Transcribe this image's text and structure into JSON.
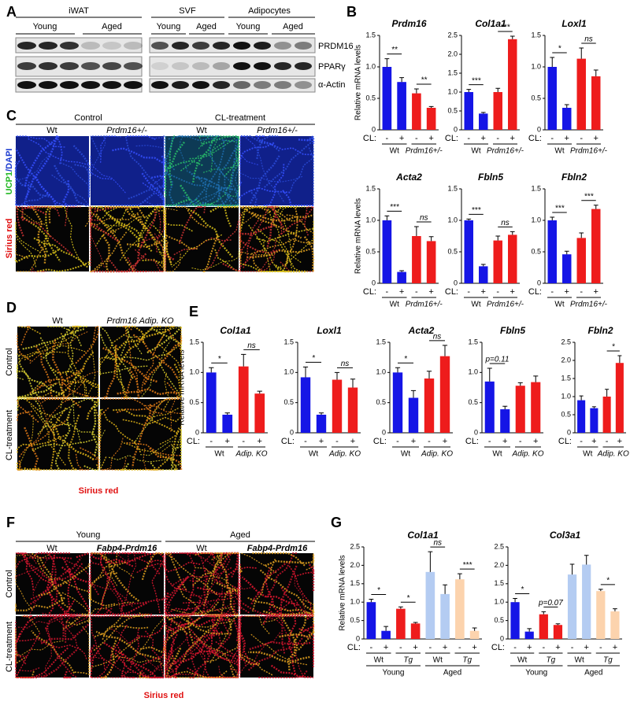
{
  "panel_labels": [
    "A",
    "B",
    "C",
    "D",
    "E",
    "F",
    "G"
  ],
  "panel_a": {
    "tissues": [
      "iWAT",
      "SVF",
      "Adipocytes"
    ],
    "groups": [
      "Young",
      "Aged",
      "Young",
      "Aged",
      "Young",
      "Aged"
    ],
    "proteins": [
      "PRDM16",
      "PPARγ",
      "α-Actin"
    ]
  },
  "panel_c": {
    "conditions": [
      "Control",
      "CL-treatment"
    ],
    "genotypes": [
      "Wt",
      "Prdm16+/-",
      "Wt",
      "Prdm16+/-"
    ],
    "stain_parts": [
      "UCP1",
      "/DAPI"
    ],
    "stain": "Sirius red"
  },
  "panel_d": {
    "genotypes": [
      "Wt",
      "Prdm16 Adip. KO"
    ],
    "conditions": [
      "Control",
      "CL-treatment"
    ],
    "stain": "Sirius red"
  },
  "panel_f": {
    "ages": [
      "Young",
      "Aged"
    ],
    "genotypes": [
      "Wt",
      "Fabp4-Prdm16",
      "Wt",
      "Fabp4-Prdm16"
    ],
    "conditions": [
      "Control",
      "CL-treatment"
    ],
    "stain": "Sirius red"
  },
  "chart_data": [
    {
      "type": "bar",
      "title": "Prdm16",
      "ylabel": "Relative mRNA levels",
      "xlabel": "CL:",
      "categories": [
        "-",
        "+",
        "-",
        "+"
      ],
      "values": [
        1.0,
        0.76,
        0.58,
        0.35
      ],
      "errors": [
        0.13,
        0.07,
        0.07,
        0.02
      ],
      "colors": [
        "#1515e6",
        "#1515e6",
        "#ee1c1c",
        "#ee1c1c"
      ],
      "groups": [
        "Wt",
        "Prdm16+/-"
      ],
      "significance": [
        "**",
        "**"
      ],
      "ylim": [
        0,
        1.5
      ],
      "yticks": [
        0,
        0.5,
        {
          "value": 1,
          "label": "1.0"
        },
        1.5
      ]
    },
    {
      "type": "bar",
      "title": "Col1a1",
      "xlabel": "CL:",
      "categories": [
        "-",
        "+",
        "-",
        "+"
      ],
      "values": [
        1.0,
        0.43,
        1.0,
        2.4
      ],
      "errors": [
        0.07,
        0.03,
        0.1,
        0.08
      ],
      "colors": [
        "#1515e6",
        "#1515e6",
        "#ee1c1c",
        "#ee1c1c"
      ],
      "groups": [
        "Wt",
        "Prdm16+/-"
      ],
      "significance": [
        "***",
        "***"
      ],
      "ylim": [
        0,
        2.5
      ],
      "yticks": [
        0,
        0.5,
        {
          "value": 1,
          "label": "1.0"
        },
        1.5,
        {
          "value": 2,
          "label": "2.0"
        },
        2.5
      ]
    },
    {
      "type": "bar",
      "title": "Loxl1",
      "xlabel": "CL:",
      "categories": [
        "-",
        "+",
        "-",
        "+"
      ],
      "values": [
        1.0,
        0.35,
        1.13,
        0.85
      ],
      "errors": [
        0.15,
        0.05,
        0.17,
        0.1
      ],
      "colors": [
        "#1515e6",
        "#1515e6",
        "#ee1c1c",
        "#ee1c1c"
      ],
      "groups": [
        "Wt",
        "Prdm16+/-"
      ],
      "significance": [
        "*",
        "ns"
      ],
      "ylim": [
        0,
        1.5
      ],
      "yticks": [
        0,
        0.5,
        {
          "value": 1,
          "label": "1.0"
        },
        1.5
      ]
    },
    {
      "type": "bar",
      "title": "Acta2",
      "ylabel": "Relative mRNA levels",
      "xlabel": "CL:",
      "categories": [
        "-",
        "+",
        "-",
        "+"
      ],
      "values": [
        1.0,
        0.18,
        0.75,
        0.67
      ],
      "errors": [
        0.07,
        0.02,
        0.15,
        0.07
      ],
      "colors": [
        "#1515e6",
        "#1515e6",
        "#ee1c1c",
        "#ee1c1c"
      ],
      "groups": [
        "Wt",
        "Prdm16+/-"
      ],
      "significance": [
        "***",
        "ns"
      ],
      "ylim": [
        0,
        1.5
      ],
      "yticks": [
        0,
        0.5,
        {
          "value": 1,
          "label": "1.0"
        },
        1.5
      ]
    },
    {
      "type": "bar",
      "title": "Fbln5",
      "xlabel": "CL:",
      "categories": [
        "-",
        "+",
        "-",
        "+"
      ],
      "values": [
        1.0,
        0.27,
        0.68,
        0.77
      ],
      "errors": [
        0.02,
        0.03,
        0.07,
        0.05
      ],
      "colors": [
        "#1515e6",
        "#1515e6",
        "#ee1c1c",
        "#ee1c1c"
      ],
      "groups": [
        "Wt",
        "Prdm16+/-"
      ],
      "significance": [
        "***",
        "ns"
      ],
      "ylim": [
        0,
        1.5
      ],
      "yticks": [
        0,
        0.5,
        {
          "value": 1,
          "label": "1.0"
        },
        1.5
      ]
    },
    {
      "type": "bar",
      "title": "Fbln2",
      "xlabel": "CL:",
      "categories": [
        "-",
        "+",
        "-",
        "+"
      ],
      "values": [
        1.0,
        0.46,
        0.72,
        1.18
      ],
      "errors": [
        0.05,
        0.05,
        0.08,
        0.06
      ],
      "colors": [
        "#1515e6",
        "#1515e6",
        "#ee1c1c",
        "#ee1c1c"
      ],
      "groups": [
        "Wt",
        "Prdm16+/-"
      ],
      "significance": [
        "***",
        "***"
      ],
      "ylim": [
        0,
        1.5
      ],
      "yticks": [
        0,
        0.5,
        {
          "value": 1,
          "label": "1.0"
        },
        1.5
      ]
    },
    {
      "type": "bar",
      "title": "Col1a1",
      "ylabel": "Relative mRNA levels",
      "xlabel": "CL:",
      "categories": [
        "-",
        "+",
        "-",
        "+"
      ],
      "values": [
        1.0,
        0.3,
        1.1,
        0.65
      ],
      "errors": [
        0.08,
        0.03,
        0.2,
        0.04
      ],
      "colors": [
        "#1515e6",
        "#1515e6",
        "#ee1c1c",
        "#ee1c1c"
      ],
      "groups": [
        "Wt",
        "Adip. KO"
      ],
      "significance": [
        "*",
        "ns"
      ],
      "ylim": [
        0,
        1.5
      ],
      "yticks": [
        0,
        0.5,
        {
          "value": 1,
          "label": "1.0"
        },
        1.5
      ]
    },
    {
      "type": "bar",
      "title": "Loxl1",
      "xlabel": "CL:",
      "categories": [
        "-",
        "+",
        "-",
        "+"
      ],
      "values": [
        0.92,
        0.3,
        0.88,
        0.75
      ],
      "errors": [
        0.17,
        0.03,
        0.12,
        0.14
      ],
      "colors": [
        "#1515e6",
        "#1515e6",
        "#ee1c1c",
        "#ee1c1c"
      ],
      "groups": [
        "Wt",
        "Adip. KO"
      ],
      "significance": [
        "*",
        "ns"
      ],
      "ylim": [
        0,
        1.5
      ],
      "yticks": [
        0,
        0.5,
        {
          "value": 1,
          "label": "1.0"
        },
        1.5
      ]
    },
    {
      "type": "bar",
      "title": "Acta2",
      "xlabel": "CL:",
      "categories": [
        "-",
        "+",
        "-",
        "+"
      ],
      "values": [
        1.0,
        0.58,
        0.9,
        1.27
      ],
      "errors": [
        0.08,
        0.12,
        0.12,
        0.18
      ],
      "colors": [
        "#1515e6",
        "#1515e6",
        "#ee1c1c",
        "#ee1c1c"
      ],
      "groups": [
        "Wt",
        "Adip. KO"
      ],
      "significance": [
        "*",
        "ns"
      ],
      "ylim": [
        0,
        1.5
      ],
      "yticks": [
        0,
        0.5,
        {
          "value": 1,
          "label": "1.0"
        },
        1.5
      ]
    },
    {
      "type": "bar",
      "title": "Fbln5",
      "xlabel": "CL:",
      "categories": [
        "-",
        "+",
        "-",
        "+"
      ],
      "values": [
        0.85,
        0.39,
        0.78,
        0.84
      ],
      "errors": [
        0.22,
        0.05,
        0.05,
        0.1
      ],
      "colors": [
        "#1515e6",
        "#1515e6",
        "#ee1c1c",
        "#ee1c1c"
      ],
      "groups": [
        "Wt",
        "Adip. KO"
      ],
      "significance": [
        "p=0.11",
        null
      ],
      "ylim": [
        0,
        1.5
      ],
      "yticks": [
        0,
        0.5,
        {
          "value": 1,
          "label": "1.0"
        },
        1.5
      ]
    },
    {
      "type": "bar",
      "title": "Fbln2",
      "xlabel": "CL:",
      "categories": [
        "-",
        "+",
        "-",
        "+"
      ],
      "values": [
        0.9,
        0.68,
        1.0,
        1.93
      ],
      "errors": [
        0.12,
        0.04,
        0.2,
        0.2
      ],
      "colors": [
        "#1515e6",
        "#1515e6",
        "#ee1c1c",
        "#ee1c1c"
      ],
      "groups": [
        "Wt",
        "Adip. KO"
      ],
      "significance": [
        null,
        "*"
      ],
      "ylim": [
        0,
        2.5
      ],
      "yticks": [
        0,
        0.5,
        {
          "value": 1,
          "label": "1.0"
        },
        1.5,
        {
          "value": 2,
          "label": "2.0"
        },
        2.5
      ]
    },
    {
      "type": "bar",
      "title": "Col1a1",
      "ylabel": "Relative mRNA levels",
      "xlabel": "CL:",
      "categories": [
        "-",
        "+",
        "-",
        "+",
        "-",
        "+",
        "-",
        "+"
      ],
      "values": [
        1.0,
        0.22,
        0.82,
        0.42,
        1.82,
        1.22,
        1.62,
        0.22
      ],
      "errors": [
        0.08,
        0.12,
        0.05,
        0.03,
        0.55,
        0.25,
        0.15,
        0.08
      ],
      "colors": [
        "#1515e6",
        "#1515e6",
        "#ee1c1c",
        "#ee1c1c",
        "#b4ccf2",
        "#b4ccf2",
        "#fcd3ad",
        "#fcd3ad"
      ],
      "groups": [
        "Wt",
        "Tg",
        "Wt",
        "Tg"
      ],
      "ages": [
        "Young",
        "Aged"
      ],
      "significance": [
        "*",
        "*",
        "ns",
        "***"
      ],
      "ylim": [
        0,
        2.5
      ],
      "yticks": [
        0,
        0.5,
        {
          "value": 1,
          "label": "1.0"
        },
        1.5,
        {
          "value": 2,
          "label": "2.0"
        },
        2.5
      ]
    },
    {
      "type": "bar",
      "title": "Col3a1",
      "xlabel": "CL:",
      "categories": [
        "-",
        "+",
        "-",
        "+",
        "-",
        "+",
        "-",
        "+"
      ],
      "values": [
        1.0,
        0.2,
        0.67,
        0.38,
        1.75,
        2.02,
        1.3,
        0.75
      ],
      "errors": [
        0.1,
        0.08,
        0.07,
        0.03,
        0.28,
        0.25,
        0.05,
        0.07
      ],
      "colors": [
        "#1515e6",
        "#1515e6",
        "#ee1c1c",
        "#ee1c1c",
        "#b4ccf2",
        "#b4ccf2",
        "#fcd3ad",
        "#fcd3ad"
      ],
      "groups": [
        "Wt",
        "Tg",
        "Wt",
        "Tg"
      ],
      "ages": [
        "Young",
        "Aged"
      ],
      "significance": [
        "*",
        "p=0.07",
        null,
        "*"
      ],
      "ylim": [
        0,
        2.5
      ],
      "yticks": [
        0,
        0.5,
        {
          "value": 1,
          "label": "1.0"
        },
        1.5,
        {
          "value": 2,
          "label": "2.0"
        },
        2.5
      ]
    }
  ]
}
